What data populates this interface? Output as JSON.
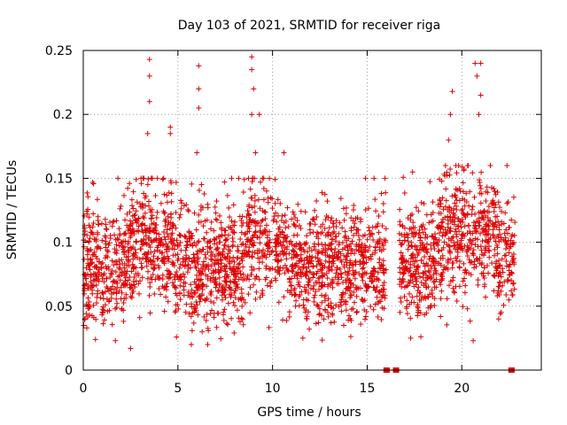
{
  "chart_data": {
    "type": "scatter",
    "title": "Day 103 of 2021, SRMTID for receiver riga",
    "xlabel": "GPS time / hours",
    "ylabel": "SRMTID / TECUs",
    "xlim": [
      0,
      24.2
    ],
    "ylim": [
      0,
      0.25
    ],
    "x_ticks": [
      0,
      5,
      10,
      15,
      20
    ],
    "x_tick_labels": [
      "0",
      "5",
      "10",
      "15",
      "20"
    ],
    "y_ticks": [
      0,
      0.05,
      0.1,
      0.15,
      0.2,
      0.25
    ],
    "y_tick_labels": [
      "0",
      "0.05",
      "0.1",
      "0.15",
      "0.2",
      "0.25"
    ],
    "grid": true,
    "marker": "plus",
    "color": "#e00000",
    "series": [
      {
        "name": "SRMTID",
        "segments": [
          {
            "x_start": 0.0,
            "x_end": 16.0,
            "y_min": 0.02,
            "y_max": 0.15,
            "typical": 0.08
          },
          {
            "x_start": 16.7,
            "x_end": 22.8,
            "y_min": 0.02,
            "y_max": 0.16,
            "typical": 0.085
          }
        ],
        "points": [
          {
            "x": 3.5,
            "y": 0.243
          },
          {
            "x": 3.5,
            "y": 0.23
          },
          {
            "x": 3.5,
            "y": 0.21
          },
          {
            "x": 6.1,
            "y": 0.238
          },
          {
            "x": 6.1,
            "y": 0.22
          },
          {
            "x": 6.1,
            "y": 0.205
          },
          {
            "x": 8.9,
            "y": 0.245
          },
          {
            "x": 8.9,
            "y": 0.235
          },
          {
            "x": 9.0,
            "y": 0.22
          },
          {
            "x": 8.9,
            "y": 0.2
          },
          {
            "x": 9.3,
            "y": 0.2
          },
          {
            "x": 9.1,
            "y": 0.17
          },
          {
            "x": 19.4,
            "y": 0.2
          },
          {
            "x": 19.5,
            "y": 0.218
          },
          {
            "x": 19.3,
            "y": 0.18
          },
          {
            "x": 20.7,
            "y": 0.24
          },
          {
            "x": 21.0,
            "y": 0.24
          },
          {
            "x": 20.8,
            "y": 0.23
          },
          {
            "x": 21.0,
            "y": 0.215
          },
          {
            "x": 20.9,
            "y": 0.2
          },
          {
            "x": 4.6,
            "y": 0.19
          },
          {
            "x": 4.6,
            "y": 0.185
          },
          {
            "x": 3.4,
            "y": 0.185
          },
          {
            "x": 6.0,
            "y": 0.17
          },
          {
            "x": 10.6,
            "y": 0.17
          },
          {
            "x": 2.5,
            "y": 0.017
          },
          {
            "x": 1.7,
            "y": 0.023
          },
          {
            "x": 17.3,
            "y": 0.025
          },
          {
            "x": 20.6,
            "y": 0.023
          },
          {
            "x": 11.6,
            "y": 0.025
          }
        ],
        "zero_points": [
          16.0,
          16.05,
          16.5,
          16.55,
          22.6,
          22.65
        ]
      }
    ]
  }
}
